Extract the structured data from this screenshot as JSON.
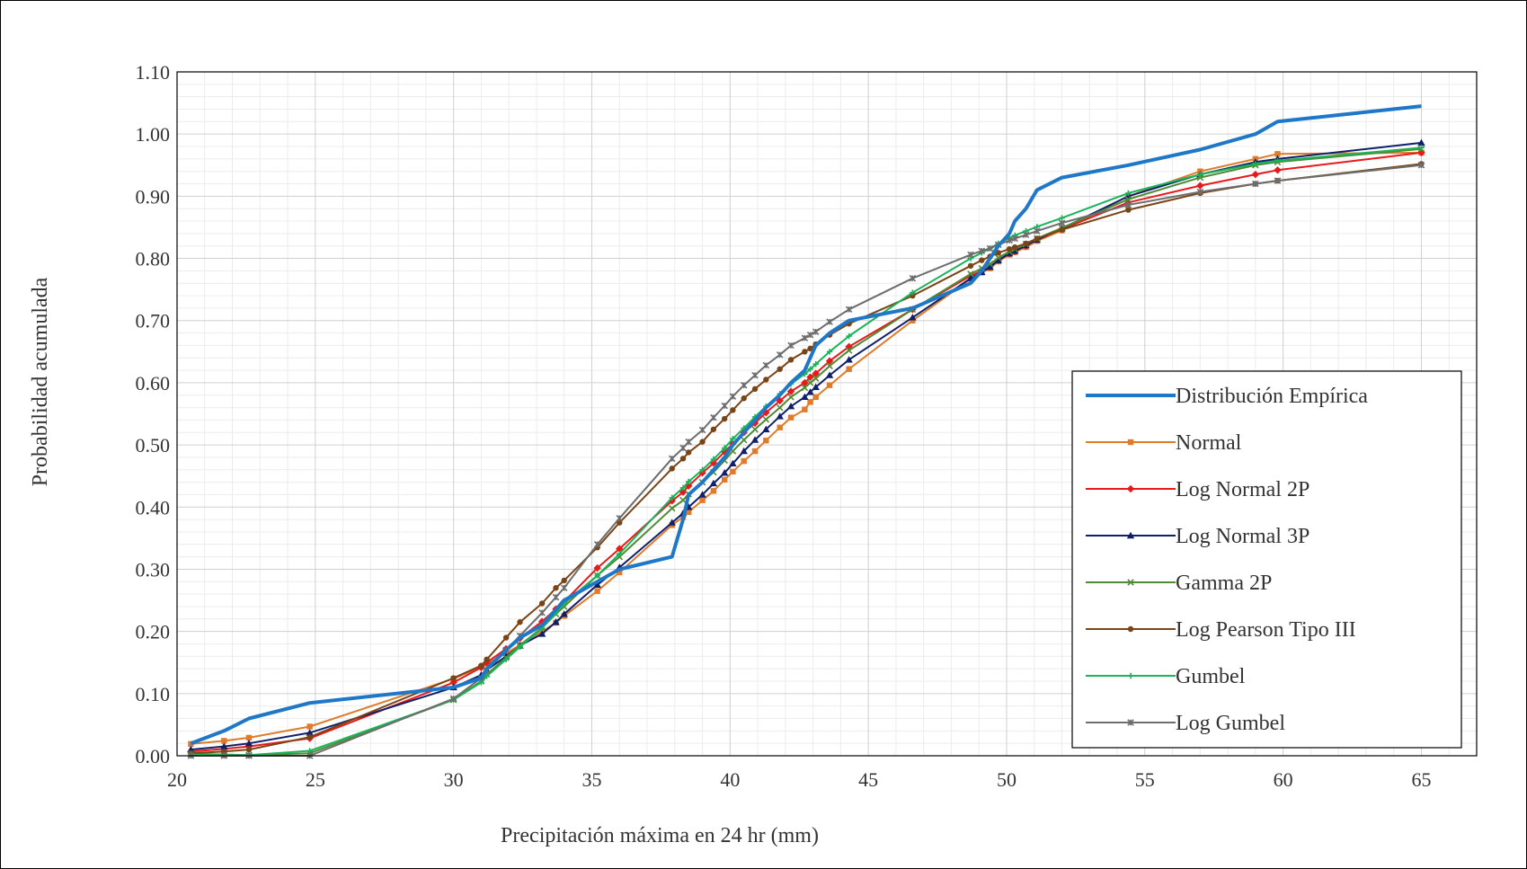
{
  "chart_data": {
    "type": "line",
    "title": "",
    "xlabel": "Precipitación máxima en 24 hr (mm)",
    "ylabel": "Probabilidad acumulada",
    "xlim": [
      20,
      67
    ],
    "ylim": [
      0,
      1.1
    ],
    "xticks": [
      "20",
      "25",
      "30",
      "35",
      "40",
      "45",
      "50",
      "55",
      "60",
      "65"
    ],
    "yticks": [
      "0.00",
      "0.10",
      "0.20",
      "0.30",
      "0.40",
      "0.50",
      "0.60",
      "0.70",
      "0.80",
      "0.90",
      "1.00",
      "1.10"
    ],
    "grid": true,
    "legend_position": "bottom-right",
    "x": [
      20.5,
      21.7,
      22.6,
      24.8,
      30.0,
      31.0,
      31.2,
      31.9,
      32.4,
      33.2,
      33.7,
      34.0,
      35.2,
      36.0,
      37.9,
      38.3,
      38.5,
      39.0,
      39.4,
      39.8,
      40.1,
      40.5,
      40.9,
      41.3,
      41.8,
      42.2,
      42.7,
      42.9,
      43.1,
      43.6,
      44.3,
      46.6,
      48.7,
      49.1,
      49.4,
      49.7,
      50.1,
      50.3,
      50.7,
      51.1,
      52.0,
      54.4,
      57.0,
      59.0,
      59.8,
      65.0
    ],
    "series": [
      {
        "name": "Distribución Empírica",
        "color": "#1f77c8",
        "marker": "none",
        "values": [
          0.02,
          0.04,
          0.06,
          0.085,
          0.11,
          0.125,
          0.14,
          0.17,
          0.19,
          0.21,
          0.235,
          0.25,
          0.28,
          0.3,
          0.32,
          0.38,
          0.42,
          0.44,
          0.46,
          0.48,
          0.5,
          0.52,
          0.54,
          0.56,
          0.58,
          0.6,
          0.62,
          0.64,
          0.66,
          0.68,
          0.7,
          0.72,
          0.76,
          0.78,
          0.8,
          0.82,
          0.84,
          0.86,
          0.88,
          0.91,
          0.93,
          0.95,
          0.975,
          1.0,
          1.02,
          1.045
        ]
      },
      {
        "name": "Normal",
        "color": "#e07b2a",
        "marker": "square",
        "values": [
          0.019,
          0.024,
          0.029,
          0.047,
          0.124,
          0.143,
          0.148,
          0.165,
          0.178,
          0.2,
          0.214,
          0.225,
          0.265,
          0.295,
          0.371,
          0.384,
          0.392,
          0.411,
          0.426,
          0.444,
          0.457,
          0.474,
          0.49,
          0.507,
          0.528,
          0.544,
          0.557,
          0.569,
          0.577,
          0.596,
          0.622,
          0.7,
          0.767,
          0.777,
          0.784,
          0.795,
          0.806,
          0.81,
          0.818,
          0.828,
          0.845,
          0.9,
          0.94,
          0.96,
          0.968,
          0.97
        ]
      },
      {
        "name": "Log Normal 2P",
        "color": "#e8191b",
        "marker": "diamond",
        "values": [
          0.007,
          0.011,
          0.015,
          0.028,
          0.118,
          0.142,
          0.15,
          0.172,
          0.189,
          0.216,
          0.236,
          0.248,
          0.302,
          0.333,
          0.41,
          0.424,
          0.434,
          0.455,
          0.471,
          0.489,
          0.502,
          0.52,
          0.535,
          0.552,
          0.571,
          0.586,
          0.6,
          0.609,
          0.615,
          0.635,
          0.658,
          0.718,
          0.772,
          0.78,
          0.787,
          0.797,
          0.808,
          0.811,
          0.82,
          0.83,
          0.847,
          0.89,
          0.917,
          0.935,
          0.942,
          0.97
        ]
      },
      {
        "name": "Log Normal 3P",
        "color": "#0f1f6b",
        "marker": "triangle",
        "values": [
          0.01,
          0.015,
          0.02,
          0.037,
          0.11,
          0.13,
          0.138,
          0.16,
          0.177,
          0.196,
          0.215,
          0.228,
          0.275,
          0.303,
          0.375,
          0.39,
          0.4,
          0.42,
          0.438,
          0.455,
          0.47,
          0.49,
          0.508,
          0.525,
          0.546,
          0.562,
          0.577,
          0.585,
          0.593,
          0.612,
          0.637,
          0.705,
          0.768,
          0.778,
          0.786,
          0.797,
          0.808,
          0.812,
          0.821,
          0.83,
          0.848,
          0.9,
          0.935,
          0.955,
          0.96,
          0.986
        ]
      },
      {
        "name": "Gamma 2P",
        "color": "#4f8a34",
        "marker": "x",
        "values": [
          0.003,
          0.002,
          0.001,
          0.004,
          0.09,
          0.12,
          0.131,
          0.158,
          0.178,
          0.206,
          0.228,
          0.24,
          0.29,
          0.32,
          0.398,
          0.411,
          0.421,
          0.44,
          0.456,
          0.475,
          0.49,
          0.508,
          0.525,
          0.541,
          0.56,
          0.577,
          0.592,
          0.6,
          0.607,
          0.627,
          0.652,
          0.718,
          0.775,
          0.784,
          0.791,
          0.801,
          0.811,
          0.815,
          0.823,
          0.832,
          0.849,
          0.895,
          0.93,
          0.95,
          0.955,
          0.976
        ]
      },
      {
        "name": "Log Pearson Tipo III",
        "color": "#7a4516",
        "marker": "circle",
        "values": [
          0.004,
          0.007,
          0.01,
          0.03,
          0.125,
          0.145,
          0.155,
          0.19,
          0.215,
          0.245,
          0.27,
          0.282,
          0.335,
          0.375,
          0.462,
          0.478,
          0.488,
          0.505,
          0.525,
          0.542,
          0.556,
          0.575,
          0.59,
          0.605,
          0.622,
          0.637,
          0.65,
          0.655,
          0.662,
          0.677,
          0.695,
          0.74,
          0.788,
          0.797,
          0.803,
          0.809,
          0.815,
          0.818,
          0.824,
          0.832,
          0.846,
          0.878,
          0.905,
          0.92,
          0.925,
          0.952
        ]
      },
      {
        "name": "Gumbel",
        "color": "#19b45a",
        "marker": "plus",
        "values": [
          0.002,
          0.001,
          0.001,
          0.008,
          0.09,
          0.118,
          0.128,
          0.155,
          0.175,
          0.205,
          0.23,
          0.245,
          0.29,
          0.325,
          0.415,
          0.431,
          0.441,
          0.46,
          0.477,
          0.495,
          0.51,
          0.527,
          0.545,
          0.562,
          0.582,
          0.598,
          0.614,
          0.622,
          0.63,
          0.65,
          0.675,
          0.745,
          0.8,
          0.809,
          0.816,
          0.824,
          0.833,
          0.837,
          0.844,
          0.851,
          0.865,
          0.905,
          0.935,
          0.952,
          0.957,
          0.978
        ]
      },
      {
        "name": "Log Gumbel",
        "color": "#6d6d6d",
        "marker": "star",
        "values": [
          0.0,
          0.0,
          0.0,
          0.0,
          0.092,
          0.125,
          0.137,
          0.17,
          0.193,
          0.23,
          0.255,
          0.27,
          0.34,
          0.382,
          0.478,
          0.495,
          0.505,
          0.524,
          0.544,
          0.563,
          0.578,
          0.596,
          0.612,
          0.628,
          0.645,
          0.66,
          0.672,
          0.677,
          0.682,
          0.698,
          0.718,
          0.768,
          0.806,
          0.812,
          0.816,
          0.822,
          0.829,
          0.832,
          0.838,
          0.844,
          0.857,
          0.886,
          0.907,
          0.92,
          0.925,
          0.95
        ]
      }
    ]
  }
}
